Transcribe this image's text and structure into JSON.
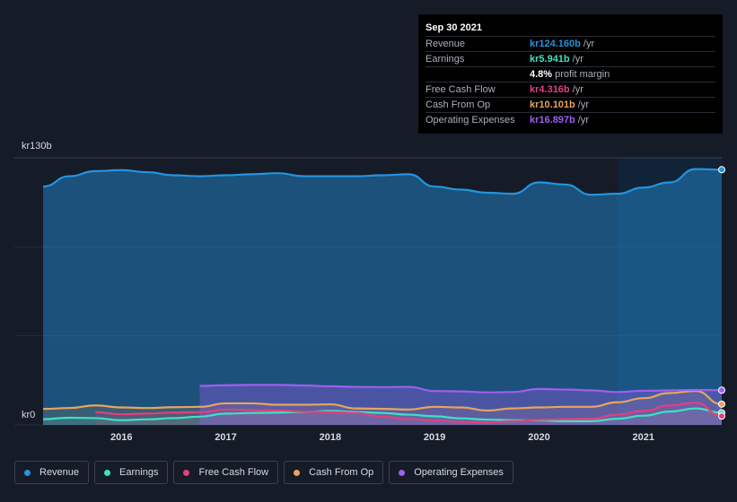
{
  "tooltip": {
    "date": "Sep 30 2021",
    "rows": [
      {
        "label": "Revenue",
        "value": "kr124.160b",
        "unit": "/yr",
        "color": "#2394df"
      },
      {
        "label": "Earnings",
        "value": "kr5.941b",
        "unit": "/yr",
        "color": "#3fe0c5"
      },
      {
        "label": "",
        "value": "4.8%",
        "unit": "profit margin",
        "color": "#ffffff"
      },
      {
        "label": "Free Cash Flow",
        "value": "kr4.316b",
        "unit": "/yr",
        "color": "#e0417d"
      },
      {
        "label": "Cash From Op",
        "value": "kr10.101b",
        "unit": "/yr",
        "color": "#e8a55b"
      },
      {
        "label": "Operating Expenses",
        "value": "kr16.897b",
        "unit": "/yr",
        "color": "#a05ef0"
      }
    ]
  },
  "legend": [
    {
      "label": "Revenue",
      "color": "#2394df"
    },
    {
      "label": "Earnings",
      "color": "#3fe0c5"
    },
    {
      "label": "Free Cash Flow",
      "color": "#e0417d"
    },
    {
      "label": "Cash From Op",
      "color": "#e8a55b"
    },
    {
      "label": "Operating Expenses",
      "color": "#a05ef0"
    }
  ],
  "chart_data": {
    "type": "area",
    "y_axis_labels": [
      "kr130b",
      "kr0"
    ],
    "ylim": [
      0,
      130
    ],
    "xlim": [
      2015.25,
      2021.75
    ],
    "x_ticks": [
      2016,
      2017,
      2018,
      2019,
      2020,
      2021
    ],
    "x_tick_labels": [
      "2016",
      "2017",
      "2018",
      "2019",
      "2020",
      "2021"
    ],
    "highlight_from": 2020.75,
    "grid": true,
    "legend_position": "bottom",
    "series": [
      {
        "name": "Revenue",
        "color": "#2394df",
        "x": [
          2015.25,
          2015.5,
          2015.75,
          2016,
          2016.25,
          2016.5,
          2016.75,
          2017,
          2017.25,
          2017.5,
          2017.75,
          2018,
          2018.25,
          2018.5,
          2018.75,
          2019,
          2019.25,
          2019.5,
          2019.75,
          2020,
          2020.25,
          2020.5,
          2020.75,
          2021,
          2021.25,
          2021.5,
          2021.75
        ],
        "y": [
          116,
          121,
          123.5,
          124,
          123,
          121.5,
          121,
          121.5,
          122,
          122.5,
          121,
          121,
          121,
          121.5,
          122,
          116,
          114.5,
          113,
          112.5,
          118,
          117,
          112,
          112.5,
          115.5,
          118,
          124.5,
          124.2
        ]
      },
      {
        "name": "Earnings",
        "color": "#3fe0c5",
        "x": [
          2015.25,
          2015.5,
          2015.75,
          2016,
          2016.25,
          2016.5,
          2016.75,
          2017,
          2017.25,
          2017.5,
          2017.75,
          2018,
          2018.25,
          2018.5,
          2018.75,
          2019,
          2019.25,
          2019.5,
          2019.75,
          2020,
          2020.25,
          2020.5,
          2020.75,
          2021,
          2021.25,
          2021.5,
          2021.75
        ],
        "y": [
          2.8,
          3.5,
          3.3,
          2.3,
          2.7,
          3.3,
          4,
          5.5,
          5.8,
          6,
          6.3,
          6.8,
          6.3,
          5.8,
          5,
          4.2,
          3.2,
          2.6,
          2.3,
          2.2,
          1.8,
          1.8,
          3,
          4.5,
          6.5,
          8,
          5.9
        ]
      },
      {
        "name": "Free Cash Flow",
        "color": "#e0417d",
        "x": [
          2015.75,
          2016,
          2016.25,
          2016.5,
          2016.75,
          2017,
          2017.25,
          2017.5,
          2017.75,
          2018,
          2018.25,
          2018.5,
          2018.75,
          2019,
          2019.25,
          2019.5,
          2019.75,
          2020,
          2020.25,
          2020.5,
          2020.75,
          2021,
          2021.25,
          2021.5,
          2021.75
        ],
        "y": [
          6.2,
          5.2,
          5.5,
          6,
          6.2,
          7.5,
          7.2,
          7,
          6.5,
          6.2,
          5.8,
          4,
          2.8,
          2.2,
          1.5,
          1.2,
          1.8,
          2.5,
          2.8,
          3,
          5,
          6.8,
          9.5,
          10.8,
          4.3
        ]
      },
      {
        "name": "Cash From Op",
        "color": "#e8a55b",
        "x": [
          2015.25,
          2015.5,
          2015.75,
          2016,
          2016.25,
          2016.5,
          2016.75,
          2017,
          2017.25,
          2017.5,
          2017.75,
          2018,
          2018.25,
          2018.5,
          2018.75,
          2019,
          2019.25,
          2019.5,
          2019.75,
          2020,
          2020.25,
          2020.5,
          2020.75,
          2021,
          2021.25,
          2021.5,
          2021.75
        ],
        "y": [
          7.8,
          8.2,
          9.5,
          8.5,
          8.2,
          8.6,
          8.8,
          10.5,
          10.5,
          9.8,
          9.8,
          10,
          8,
          7.8,
          7.5,
          8.8,
          8.5,
          7,
          8,
          8.5,
          8.8,
          8.8,
          11,
          13,
          15.5,
          16.5,
          10.1
        ]
      },
      {
        "name": "Operating Expenses",
        "color": "#a05ef0",
        "x": [
          2016.75,
          2017,
          2017.25,
          2017.5,
          2017.75,
          2018,
          2018.25,
          2018.5,
          2018.75,
          2019,
          2019.25,
          2019.5,
          2019.75,
          2020,
          2020.25,
          2020.5,
          2020.75,
          2021,
          2021.25,
          2021.5,
          2021.75
        ],
        "y": [
          19,
          19.3,
          19.5,
          19.5,
          19.2,
          18.8,
          18.5,
          18.4,
          18.5,
          16.5,
          16.3,
          15.8,
          16,
          17.5,
          17.2,
          16.8,
          16,
          16.6,
          16.8,
          17,
          16.9
        ]
      }
    ]
  }
}
